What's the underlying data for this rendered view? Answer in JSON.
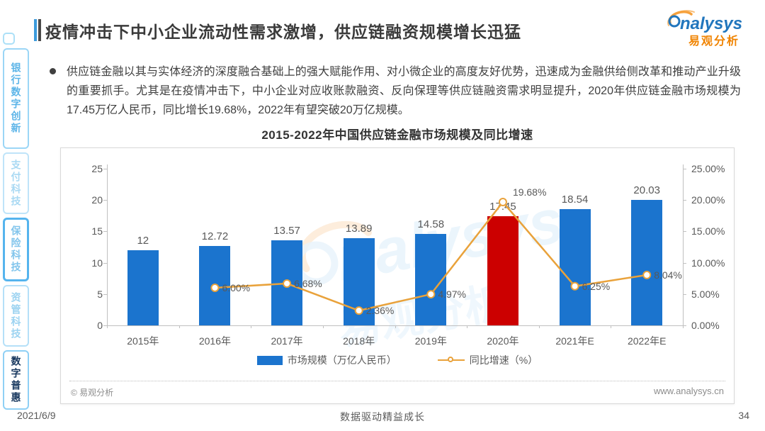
{
  "header": {
    "title": "疫情冲击下中小企业流动性需求激增，供应链融资规模增长迅猛",
    "logo": {
      "brand": "nalysys",
      "brand_cn": "易观分析"
    }
  },
  "sidebar": {
    "items": [
      {
        "label": "银行数字创新",
        "state": "normal"
      },
      {
        "label": "支付科技",
        "state": "faint"
      },
      {
        "label": "保险科技",
        "state": "outlined"
      },
      {
        "label": "资管科技",
        "state": "faint"
      },
      {
        "label": "数字普惠",
        "state": "selected"
      }
    ]
  },
  "body_text": "供应链金融以其与实体经济的深度融合基础上的强大赋能作用、对小微企业的高度友好优势，迅速成为金融供给侧改革和推动产业升级的重要抓手。尤其是在疫情冲击下，中小企业对应收账款融资、反向保理等供应链融资需求明显提升，2020年供应链金融市场规模为17.45万亿人民币，同比增长19.68%，2022年有望突破20万亿规模。",
  "chart_data": {
    "type": "bar",
    "title": "2015-2022年中国供应链金融市场规模及同比增速",
    "categories": [
      "2015年",
      "2016年",
      "2017年",
      "2018年",
      "2019年",
      "2020年",
      "2021年E",
      "2022年E"
    ],
    "series": [
      {
        "name": "市场规模（万亿人民币）",
        "type": "bar",
        "values": [
          12,
          12.72,
          13.57,
          13.89,
          14.58,
          17.45,
          18.54,
          20.03
        ],
        "labels": [
          "12",
          "12.72",
          "13.57",
          "13.89",
          "14.58",
          "17.45",
          "18.54",
          "20.03"
        ]
      },
      {
        "name": "同比增速（%）",
        "type": "line",
        "values": [
          null,
          6.0,
          6.68,
          2.36,
          4.97,
          19.68,
          6.25,
          8.04
        ],
        "labels": [
          null,
          "6.00%",
          "6.68%",
          "2.36%",
          "4.97%",
          "19.68%",
          "6.25%",
          "8.04%"
        ]
      }
    ],
    "y_left": {
      "min": 0,
      "max": 25,
      "ticks": [
        "0",
        "5",
        "10",
        "15",
        "20",
        "25"
      ]
    },
    "y_right": {
      "min": 0,
      "max": 25,
      "ticks": [
        "0.00%",
        "5.00%",
        "10.00%",
        "15.00%",
        "20.00%",
        "25.00%"
      ]
    },
    "colors": {
      "bar": "#1b74ce",
      "bar_highlight": "#cc0000",
      "highlight_index": 5,
      "line": "#e9a23b",
      "marker_fill": "#ffffff"
    },
    "legend_position": "bottom",
    "grid": false
  },
  "watermark": {
    "text": "nalysys",
    "text_cn": "易观分析"
  },
  "chart_footer": {
    "copyright": "© 易观分析",
    "site": "www.analysys.cn"
  },
  "page_footer": {
    "date": "2021/6/9",
    "slogan": "数据驱动精益成长",
    "page": "34"
  }
}
